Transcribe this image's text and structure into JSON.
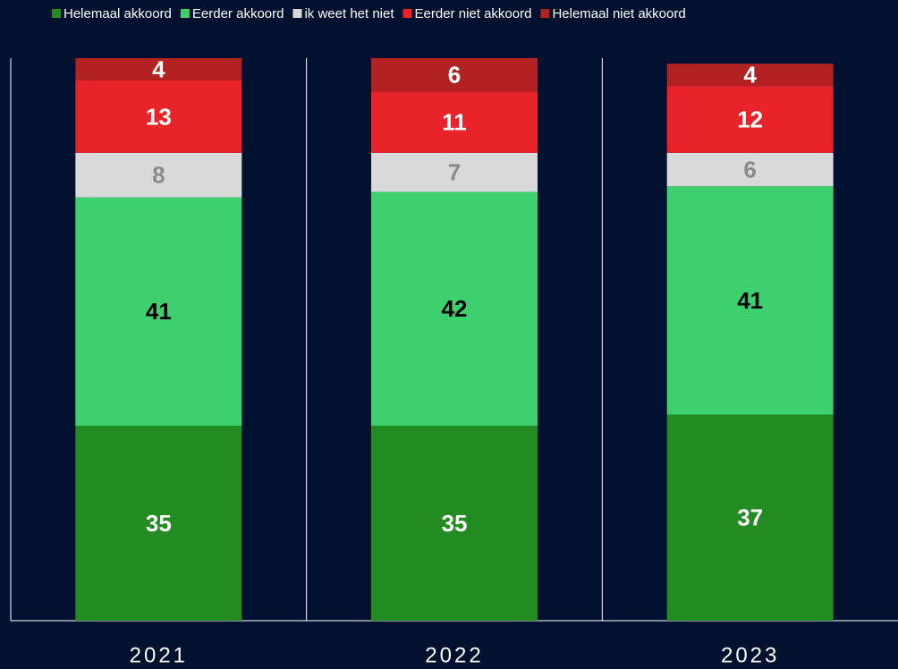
{
  "chart_data": {
    "type": "stacked-bar",
    "categories": [
      "2021",
      "2022",
      "2023"
    ],
    "series": [
      {
        "name": "Helemaal akkoord",
        "color": "#228b22",
        "label_color": "#ffffff",
        "values": [
          35,
          35,
          37
        ]
      },
      {
        "name": "Eerder akkoord",
        "color": "#3ecf6e",
        "label_color": "#000000",
        "values": [
          41,
          42,
          41
        ]
      },
      {
        "name": "ik weet het niet",
        "color": "#d9d9d9",
        "label_color": "#8a8a8a",
        "values": [
          8,
          7,
          6
        ]
      },
      {
        "name": "Eerder niet akkoord",
        "color": "#e8232a",
        "label_color": "#ffffff",
        "values": [
          13,
          11,
          12
        ]
      },
      {
        "name": "Helemaal niet akkoord",
        "color": "#b22222",
        "label_color": "#ffffff",
        "values": [
          4,
          6,
          4
        ]
      }
    ],
    "ylim": [
      0,
      101
    ],
    "legend": "top"
  }
}
